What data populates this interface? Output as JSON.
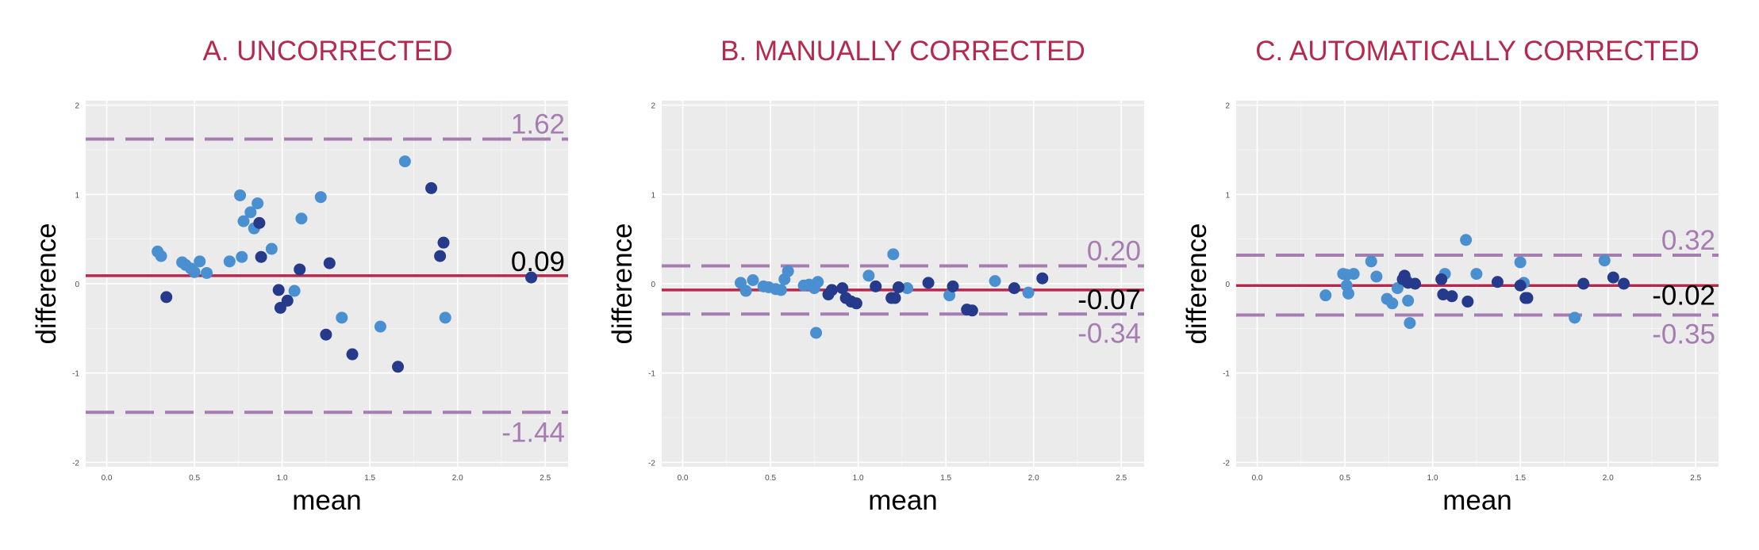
{
  "colors": {
    "title": "#b5294e",
    "panel_bg": "#ebebeb",
    "grid_major": "#ffffff",
    "mean_line": "#b5294e",
    "limit_line": "#a67db0",
    "limit_text": "#a67db0",
    "point_light": "#4a90d0",
    "point_dark": "#253a8a",
    "tick_text": "#4d4d4d",
    "axis_title": "#000000"
  },
  "chart_data": [
    {
      "type": "scatter",
      "title": "A. UNCORRECTED",
      "xlabel": "mean",
      "ylabel": "difference",
      "xlim": [
        -0.12,
        2.63
      ],
      "ylim": [
        -2.05,
        2.05
      ],
      "xticks": [
        0.0,
        0.5,
        1.0,
        1.5,
        2.0,
        2.5
      ],
      "xtick_labels": [
        "0.0",
        "0.5",
        "1.0",
        "1.5",
        "2.0",
        "2.5"
      ],
      "yticks": [
        2,
        1,
        0,
        -1,
        -2
      ],
      "ytick_labels": [
        "2",
        "1",
        "0",
        "-1",
        "-2"
      ],
      "mean_diff": 0.09,
      "mean_label": "0.09",
      "upper_loa": 1.62,
      "upper_label": "1.62",
      "lower_loa": -1.44,
      "lower_label": "-1.44",
      "series": [
        {
          "name": "group-light",
          "points": [
            [
              0.29,
              0.36
            ],
            [
              0.31,
              0.31
            ],
            [
              0.43,
              0.24
            ],
            [
              0.45,
              0.21
            ],
            [
              0.48,
              0.17
            ],
            [
              0.5,
              0.13
            ],
            [
              0.53,
              0.25
            ],
            [
              0.57,
              0.12
            ],
            [
              0.7,
              0.25
            ],
            [
              0.76,
              0.99
            ],
            [
              0.77,
              0.3
            ],
            [
              0.78,
              0.7
            ],
            [
              0.82,
              0.8
            ],
            [
              0.84,
              0.62
            ],
            [
              0.86,
              0.9
            ],
            [
              0.94,
              0.39
            ],
            [
              1.07,
              -0.08
            ],
            [
              1.11,
              0.73
            ],
            [
              1.22,
              0.97
            ],
            [
              1.34,
              -0.38
            ],
            [
              1.56,
              -0.48
            ],
            [
              1.7,
              1.37
            ],
            [
              1.93,
              -0.38
            ]
          ]
        },
        {
          "name": "group-dark",
          "points": [
            [
              0.34,
              -0.15
            ],
            [
              0.87,
              0.68
            ],
            [
              0.88,
              0.3
            ],
            [
              0.98,
              -0.07
            ],
            [
              0.99,
              -0.27
            ],
            [
              1.03,
              -0.19
            ],
            [
              1.1,
              0.16
            ],
            [
              1.25,
              -0.57
            ],
            [
              1.27,
              0.23
            ],
            [
              1.4,
              -0.79
            ],
            [
              1.66,
              -0.93
            ],
            [
              1.85,
              1.07
            ],
            [
              1.9,
              0.31
            ],
            [
              1.92,
              0.46
            ],
            [
              2.42,
              0.07
            ]
          ]
        }
      ]
    },
    {
      "type": "scatter",
      "title": "B. MANUALLY CORRECTED",
      "xlabel": "mean",
      "ylabel": "difference",
      "xlim": [
        -0.12,
        2.63
      ],
      "ylim": [
        -2.05,
        2.05
      ],
      "xticks": [
        0.0,
        0.5,
        1.0,
        1.5,
        2.0,
        2.5
      ],
      "xtick_labels": [
        "0.0",
        "0.5",
        "1.0",
        "1.5",
        "2.0",
        "2.5"
      ],
      "yticks": [
        2,
        1,
        0,
        -1,
        -2
      ],
      "ytick_labels": [
        "2",
        "1",
        "0",
        "-1",
        "-2"
      ],
      "mean_diff": -0.07,
      "mean_label": "-0.07",
      "upper_loa": 0.2,
      "upper_label": "0.20",
      "lower_loa": -0.34,
      "lower_label": "-0.34",
      "series": [
        {
          "name": "group-light",
          "points": [
            [
              0.33,
              0.01
            ],
            [
              0.36,
              -0.08
            ],
            [
              0.4,
              0.04
            ],
            [
              0.46,
              -0.03
            ],
            [
              0.49,
              -0.04
            ],
            [
              0.53,
              -0.06
            ],
            [
              0.56,
              -0.07
            ],
            [
              0.58,
              0.05
            ],
            [
              0.6,
              0.14
            ],
            [
              0.69,
              -0.02
            ],
            [
              0.72,
              -0.01
            ],
            [
              0.74,
              -0.02
            ],
            [
              0.75,
              -0.05
            ],
            [
              0.76,
              -0.55
            ],
            [
              0.77,
              0.02
            ],
            [
              1.06,
              0.09
            ],
            [
              1.2,
              0.33
            ],
            [
              1.28,
              -0.05
            ],
            [
              1.52,
              -0.13
            ],
            [
              1.78,
              0.03
            ],
            [
              1.97,
              -0.1
            ]
          ]
        },
        {
          "name": "group-dark",
          "points": [
            [
              0.83,
              -0.12
            ],
            [
              0.85,
              -0.07
            ],
            [
              0.91,
              -0.05
            ],
            [
              0.93,
              -0.16
            ],
            [
              0.96,
              -0.2
            ],
            [
              0.99,
              -0.22
            ],
            [
              1.1,
              -0.03
            ],
            [
              1.19,
              -0.16
            ],
            [
              1.21,
              -0.16
            ],
            [
              1.23,
              -0.04
            ],
            [
              1.4,
              0.01
            ],
            [
              1.54,
              -0.03
            ],
            [
              1.62,
              -0.29
            ],
            [
              1.65,
              -0.3
            ],
            [
              1.89,
              -0.05
            ],
            [
              2.05,
              0.06
            ]
          ]
        }
      ]
    },
    {
      "type": "scatter",
      "title": "C. AUTOMATICALLY CORRECTED",
      "xlabel": "mean",
      "ylabel": "difference",
      "xlim": [
        -0.12,
        2.63
      ],
      "ylim": [
        -2.05,
        2.05
      ],
      "xticks": [
        0.0,
        0.5,
        1.0,
        1.5,
        2.0,
        2.5
      ],
      "xtick_labels": [
        "0.0",
        "0.5",
        "1.0",
        "1.5",
        "2.0",
        "2.5"
      ],
      "yticks": [
        2,
        1,
        0,
        -1,
        -2
      ],
      "ytick_labels": [
        "2",
        "1",
        "0",
        "-1",
        "-2"
      ],
      "mean_diff": -0.02,
      "mean_label": "-0.02",
      "upper_loa": 0.32,
      "upper_label": "0.32",
      "lower_loa": -0.35,
      "lower_label": "-0.35",
      "series": [
        {
          "name": "group-light",
          "points": [
            [
              0.39,
              -0.13
            ],
            [
              0.49,
              0.11
            ],
            [
              0.51,
              0.1
            ],
            [
              0.51,
              -0.02
            ],
            [
              0.52,
              -0.11
            ],
            [
              0.55,
              0.11
            ],
            [
              0.65,
              0.25
            ],
            [
              0.68,
              0.08
            ],
            [
              0.74,
              -0.17
            ],
            [
              0.77,
              -0.22
            ],
            [
              0.8,
              -0.05
            ],
            [
              0.85,
              0.04
            ],
            [
              0.86,
              -0.19
            ],
            [
              0.87,
              -0.44
            ],
            [
              1.07,
              0.11
            ],
            [
              1.19,
              0.49
            ],
            [
              1.25,
              0.11
            ],
            [
              1.5,
              0.24
            ],
            [
              1.52,
              0.01
            ],
            [
              1.81,
              -0.38
            ],
            [
              1.98,
              0.26
            ]
          ]
        },
        {
          "name": "group-dark",
          "points": [
            [
              0.83,
              0.05
            ],
            [
              0.84,
              0.09
            ],
            [
              0.86,
              0.01
            ],
            [
              0.9,
              0.0
            ],
            [
              1.05,
              0.05
            ],
            [
              1.06,
              -0.12
            ],
            [
              1.11,
              -0.14
            ],
            [
              1.2,
              -0.2
            ],
            [
              1.37,
              0.02
            ],
            [
              1.5,
              -0.02
            ],
            [
              1.53,
              -0.16
            ],
            [
              1.54,
              -0.16
            ],
            [
              1.86,
              0.0
            ],
            [
              2.03,
              0.07
            ],
            [
              2.09,
              0.0
            ]
          ]
        }
      ]
    }
  ]
}
